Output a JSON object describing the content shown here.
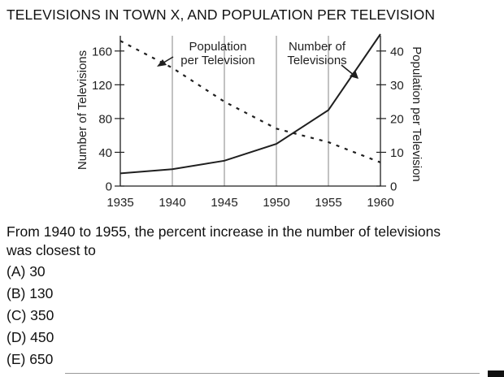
{
  "title": "TELEVISIONS IN TOWN X, AND POPULATION PER TELEVISION",
  "chart_data": {
    "type": "line",
    "x": [
      1935,
      1940,
      1945,
      1950,
      1955,
      1960
    ],
    "xticks": [
      "1935",
      "1940",
      "1945",
      "1950",
      "1955",
      "1960"
    ],
    "xlim": [
      1935,
      1960
    ],
    "left_axis": {
      "label": "Number of Televisions",
      "ylim": [
        0,
        180
      ],
      "ticks": [
        "0",
        "40",
        "80",
        "120",
        "160"
      ],
      "tick_values": [
        0,
        40,
        80,
        120,
        160
      ]
    },
    "right_axis": {
      "label": "Population per Television",
      "ylim": [
        0,
        45
      ],
      "ticks": [
        "0",
        "10",
        "20",
        "30",
        "40"
      ],
      "tick_values": [
        0,
        10,
        20,
        30,
        40
      ]
    },
    "grid": "vertical",
    "series": [
      {
        "name": "Number of Televisions",
        "axis": "left",
        "style": "solid",
        "values": [
          15,
          20,
          30,
          50,
          90,
          180
        ]
      },
      {
        "name": "Population per Television",
        "axis": "right",
        "style": "dashed",
        "values": [
          43,
          35,
          25,
          17,
          13,
          7
        ]
      }
    ],
    "annotations": [
      {
        "label_line1": "Population",
        "label_line2": "per Television",
        "points_to": "Population per Television"
      },
      {
        "label_line1": "Number of",
        "label_line2": "Televisions",
        "points_to": "Number of Televisions"
      }
    ]
  },
  "question": {
    "line1": "From 1940 to 1955, the percent increase in the number of televisions",
    "line2": "was closest to",
    "options": [
      "(A) 30",
      "(B) 130",
      "(C) 350",
      "(D) 450",
      "(E) 650"
    ]
  },
  "colors": {
    "line": "#1f1f1f",
    "grid": "#9a9a9a"
  }
}
